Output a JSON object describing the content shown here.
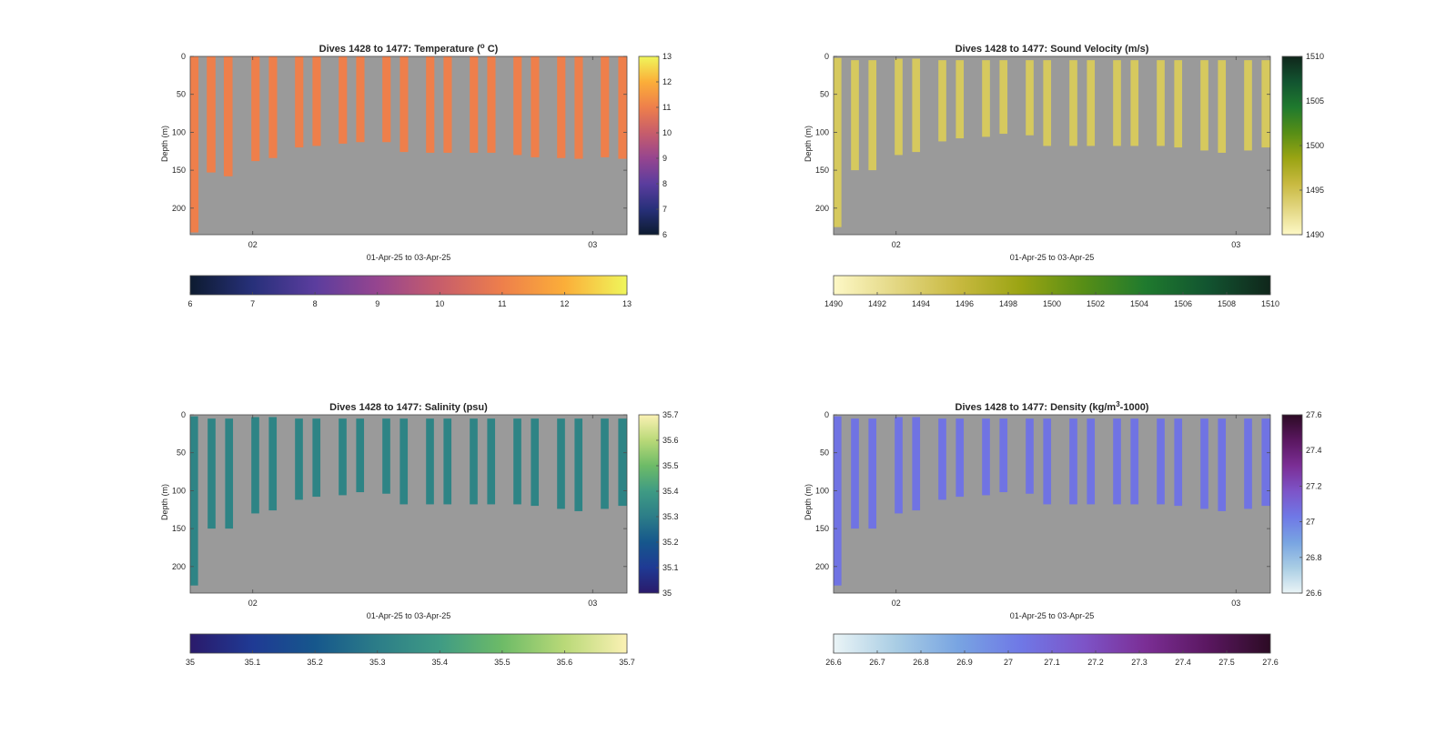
{
  "figure": {
    "xlabel": "01-Apr-25 to 03-Apr-25",
    "ylabel": "Depth (m)"
  },
  "chart_data": [
    {
      "type": "heatmap",
      "title_prefix": "Dives 1428 to 1477: Temperature (",
      "title_sup": "o",
      "title_suffix": " C)",
      "variable": "Temperature",
      "x_ticks": [
        "02",
        "03"
      ],
      "x_tick_values": [
        0.342,
        1.342
      ],
      "xlim": [
        0.158,
        1.443
      ],
      "y_ticks": [
        0,
        50,
        100,
        150,
        200
      ],
      "ylim": [
        0,
        235
      ],
      "y_reversed": true,
      "grid": false,
      "clim": [
        6,
        13
      ],
      "colorbar_ticks": [
        6,
        7,
        8,
        9,
        10,
        11,
        12,
        13
      ],
      "hbar_ticks": [
        6,
        7,
        8,
        9,
        10,
        11,
        12,
        13
      ],
      "colormap": [
        "#0d1b30",
        "#27307a",
        "#5b3d9e",
        "#96458f",
        "#c75d6b",
        "#ee7f4b",
        "#fbae39",
        "#eff65b"
      ],
      "background": "#9a9a9a",
      "cast_value": 10.6,
      "cast_color": "#ee7f4b"
    },
    {
      "type": "heatmap",
      "title_prefix": "Dives 1428 to 1477: Sound Velocity (m/s)",
      "title_sup": "",
      "title_suffix": "",
      "variable": "Sound Velocity",
      "x_ticks": [
        "02",
        "03"
      ],
      "x_tick_values": [
        0.342,
        1.342
      ],
      "xlim": [
        0.158,
        1.443
      ],
      "y_ticks": [
        0,
        50,
        100,
        150,
        200
      ],
      "ylim": [
        0,
        235
      ],
      "y_reversed": true,
      "grid": false,
      "clim": [
        1490,
        1510
      ],
      "colorbar_ticks": [
        1490,
        1495,
        1500,
        1505,
        1510
      ],
      "hbar_ticks": [
        1490,
        1492,
        1494,
        1496,
        1498,
        1500,
        1502,
        1504,
        1506,
        1508,
        1510
      ],
      "colormap": [
        "#fdf8c6",
        "#e3d783",
        "#c8b940",
        "#9aa413",
        "#578e16",
        "#1f7a2e",
        "#125430",
        "#10261b"
      ],
      "background": "#9a9a9a",
      "cast_value": 1493.3,
      "cast_color": "#d6c95e"
    },
    {
      "type": "heatmap",
      "title_prefix": "Dives 1428 to 1477: Salinity (psu)",
      "title_sup": "",
      "title_suffix": "",
      "variable": "Salinity",
      "x_ticks": [
        "02",
        "03"
      ],
      "x_tick_values": [
        0.342,
        1.342
      ],
      "xlim": [
        0.158,
        1.443
      ],
      "y_ticks": [
        0,
        50,
        100,
        150,
        200
      ],
      "ylim": [
        0,
        235
      ],
      "y_reversed": true,
      "grid": false,
      "clim": [
        35,
        35.7
      ],
      "colorbar_ticks": [
        35,
        35.1,
        35.2,
        35.3,
        35.4,
        35.5,
        35.6,
        35.7
      ],
      "hbar_ticks": [
        35,
        35.1,
        35.2,
        35.3,
        35.4,
        35.5,
        35.6,
        35.7
      ],
      "colormap": [
        "#2a1a6b",
        "#1f3a94",
        "#16578c",
        "#2c7d88",
        "#3f9b84",
        "#6dbb67",
        "#b9d978",
        "#fbf1b4"
      ],
      "background": "#9a9a9a",
      "cast_value": 35.3,
      "cast_color": "#2e8485"
    },
    {
      "type": "heatmap",
      "title_prefix": "Dives 1428 to 1477: Density (kg/m",
      "title_sup": "3",
      "title_suffix": "-1000)",
      "variable": "Density",
      "x_ticks": [
        "02",
        "03"
      ],
      "x_tick_values": [
        0.342,
        1.342
      ],
      "xlim": [
        0.158,
        1.443
      ],
      "y_ticks": [
        0,
        50,
        100,
        150,
        200
      ],
      "ylim": [
        0,
        235
      ],
      "y_reversed": true,
      "grid": false,
      "clim": [
        26.6,
        27.6
      ],
      "colorbar_ticks": [
        26.6,
        26.8,
        27,
        27.2,
        27.4,
        27.6
      ],
      "hbar_ticks": [
        26.6,
        26.7,
        26.8,
        26.9,
        27,
        27.1,
        27.2,
        27.3,
        27.4,
        27.5,
        27.6
      ],
      "colormap": [
        "#eaf4f6",
        "#a9cde4",
        "#78a4e2",
        "#6f78e6",
        "#7d54c8",
        "#7b2e95",
        "#5a1760",
        "#2c0b24"
      ],
      "background": "#9a9a9a",
      "cast_value": 27.05,
      "cast_color": "#7073e3"
    }
  ]
}
